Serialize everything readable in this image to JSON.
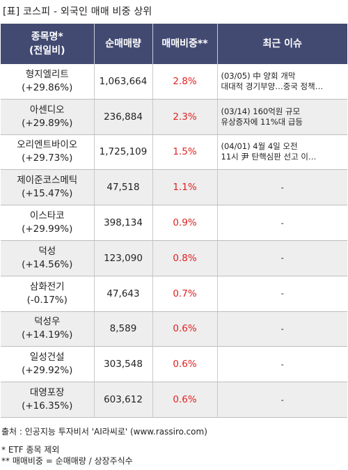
{
  "title": "[표] 코스피 - 외국인 매매 비중 상위",
  "table": {
    "headers": {
      "name_line1": "종목명*",
      "name_line2": "(전일비)",
      "volume": "순매매량",
      "ratio": "매매비중**",
      "issue": "최근 이슈"
    },
    "rows": [
      {
        "name": "형지엘리트",
        "change": "(+29.86%)",
        "volume": "1,063,664",
        "ratio": "2.8%",
        "issue1": "(03/05) 中 양회 개막",
        "issue2": "대대적 경기부양…중국 정책…"
      },
      {
        "name": "아센디오",
        "change": "(+29.89%)",
        "volume": "236,884",
        "ratio": "2.3%",
        "issue1": "(03/14) 160억원 규모",
        "issue2": "유상증자에 11%대 급등"
      },
      {
        "name": "오리엔트바이오",
        "change": "(+29.73%)",
        "volume": "1,725,109",
        "ratio": "1.5%",
        "issue1": "(04/01) 4월 4일 오전",
        "issue2": "11시 尹 탄핵심판 선고 이…"
      },
      {
        "name": "제이준코스메틱",
        "change": "(+15.47%)",
        "volume": "47,518",
        "ratio": "1.1%",
        "issue1": "-",
        "issue2": ""
      },
      {
        "name": "이스타코",
        "change": "(+29.99%)",
        "volume": "398,134",
        "ratio": "0.9%",
        "issue1": "-",
        "issue2": ""
      },
      {
        "name": "덕성",
        "change": "(+14.56%)",
        "volume": "123,090",
        "ratio": "0.8%",
        "issue1": "-",
        "issue2": ""
      },
      {
        "name": "삼화전기",
        "change": "(-0.17%)",
        "volume": "47,643",
        "ratio": "0.7%",
        "issue1": "-",
        "issue2": ""
      },
      {
        "name": "덕성우",
        "change": "(+14.19%)",
        "volume": "8,589",
        "ratio": "0.6%",
        "issue1": "-",
        "issue2": ""
      },
      {
        "name": "일성건설",
        "change": "(+29.92%)",
        "volume": "303,548",
        "ratio": "0.6%",
        "issue1": "-",
        "issue2": ""
      },
      {
        "name": "대영포장",
        "change": "(+16.35%)",
        "volume": "603,612",
        "ratio": "0.6%",
        "issue1": "-",
        "issue2": ""
      }
    ]
  },
  "footer": {
    "source": "출처 : 인공지능 투자비서 'AI라씨로' (www.rassiro.com)",
    "note1": "* ETF 종목 제외",
    "note2": "** 매매비중 = 순매매량 / 상장주식수"
  },
  "colors": {
    "header_bg": "#424a72",
    "ratio_text": "#e02020",
    "row_alt_bg": "#eeeeee"
  }
}
